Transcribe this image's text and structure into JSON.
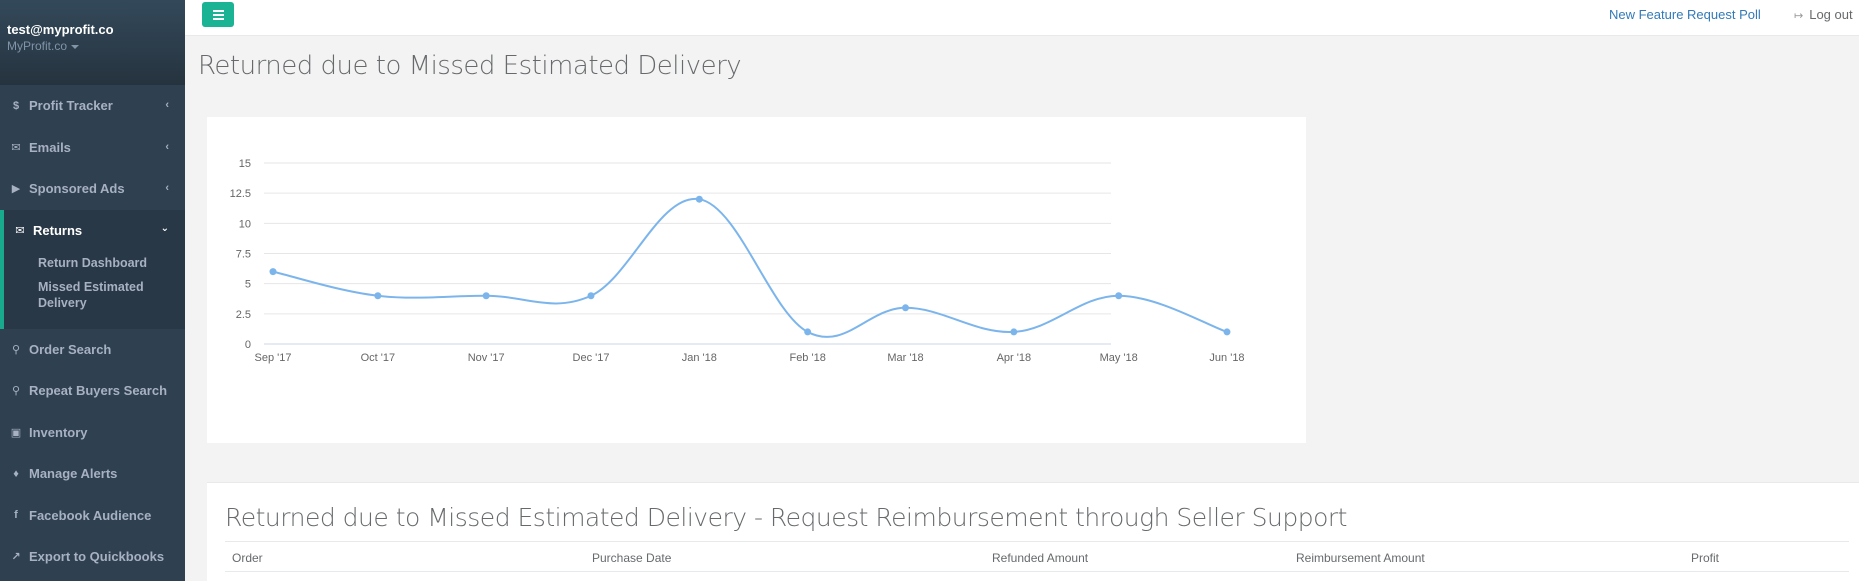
{
  "sidebar": {
    "email": "test@myprofit.co",
    "org": "MyProfit.co",
    "items": [
      {
        "label": "Profit Tracker",
        "icon": "dollar-icon"
      },
      {
        "label": "Emails",
        "icon": "envelope-icon"
      },
      {
        "label": "Sponsored Ads",
        "icon": "play-icon"
      },
      {
        "label": "Returns",
        "icon": "envelope-icon",
        "active": true,
        "children": [
          "Return Dashboard",
          "Missed Estimated Delivery"
        ]
      },
      {
        "label": "Order Search",
        "icon": "search-icon"
      },
      {
        "label": "Repeat Buyers Search",
        "icon": "search-icon"
      },
      {
        "label": "Inventory",
        "icon": "archive-icon"
      },
      {
        "label": "Manage Alerts",
        "icon": "bell-icon"
      },
      {
        "label": "Facebook Audience",
        "icon": "facebook-icon"
      },
      {
        "label": "Export to Quickbooks",
        "icon": "export-icon"
      }
    ]
  },
  "topbar": {
    "feature_link": "New Feature Request Poll",
    "logout": "Log out"
  },
  "page": {
    "title": "Returned due to Missed Estimated Delivery"
  },
  "chart_data": {
    "type": "line",
    "categories": [
      "Sep '17",
      "Oct '17",
      "Nov '17",
      "Dec '17",
      "Jan '18",
      "Feb '18",
      "Mar '18",
      "Apr '18",
      "May '18",
      "Jun '18"
    ],
    "x_positions": [
      0,
      30,
      61,
      91,
      122,
      153,
      181,
      212,
      242,
      273
    ],
    "values": [
      6,
      4,
      4,
      4,
      12,
      1,
      3,
      1,
      4,
      1
    ],
    "yticks": [
      "0",
      "2.5",
      "5",
      "7.5",
      "10",
      "12.5",
      "15"
    ],
    "ylim": [
      0,
      15
    ],
    "color": "#7cb5ec",
    "grid": true
  },
  "table": {
    "title": "Returned due to Missed Estimated Delivery - Request Reimbursement through Seller Support",
    "columns": [
      "Order",
      "Purchase Date",
      "Refunded Amount",
      "Reimbursement Amount",
      "Profit"
    ]
  },
  "colors": {
    "sidebar_bg": "#2f4050",
    "accent": "#1ab394",
    "link": "#337ab7"
  }
}
